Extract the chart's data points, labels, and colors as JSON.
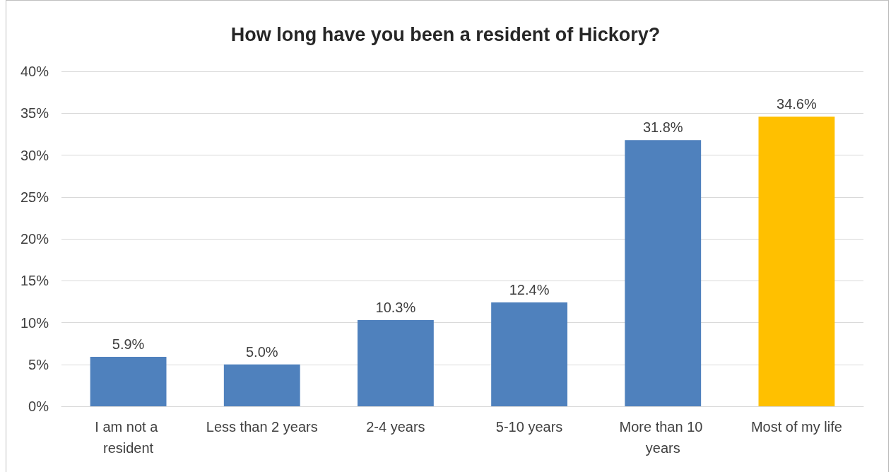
{
  "chart_data": {
    "type": "bar",
    "title": "How long have you been a resident of Hickory?",
    "categories": [
      "I am not a resident",
      "Less than 2 years",
      "2-4 years",
      "5-10 years",
      "More than 10 years",
      "Most of my life"
    ],
    "values": [
      5.9,
      5.0,
      10.3,
      12.4,
      31.8,
      34.6
    ],
    "colors": [
      "#4f81bd",
      "#4f81bd",
      "#4f81bd",
      "#4f81bd",
      "#4f81bd",
      "#ffc000"
    ],
    "value_labels": [
      "5.9%",
      "5.0%",
      "10.3%",
      "12.4%",
      "31.8%",
      "34.6%"
    ],
    "ylim": [
      0,
      40
    ],
    "yticks": [
      {
        "value": 0,
        "label": "0%"
      },
      {
        "value": 5,
        "label": "5%"
      },
      {
        "value": 10,
        "label": "10%"
      },
      {
        "value": 15,
        "label": "15%"
      },
      {
        "value": 20,
        "label": "20%"
      },
      {
        "value": 25,
        "label": "25%"
      },
      {
        "value": 30,
        "label": "30%"
      },
      {
        "value": 35,
        "label": "35%"
      },
      {
        "value": 40,
        "label": "40%"
      }
    ],
    "grid": "y"
  }
}
